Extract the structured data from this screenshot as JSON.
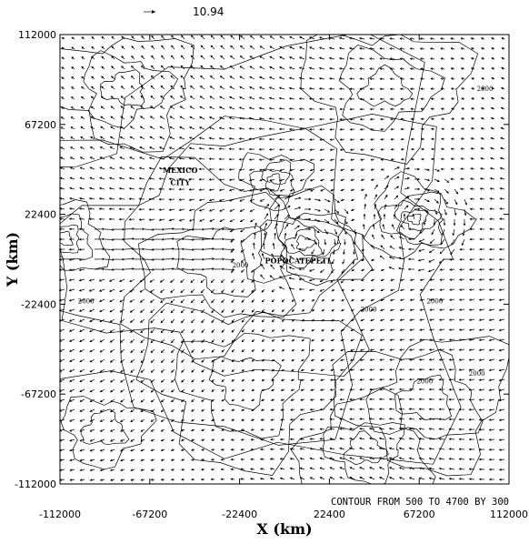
{
  "chart_data": {
    "type": "contour-vector",
    "reference_vector": {
      "label": "10.94"
    },
    "xlabel": "X  (km)",
    "ylabel": "Y  (km)",
    "xlim": [
      -112000,
      112000
    ],
    "ylim": [
      -112000,
      112000
    ],
    "x_ticks": [
      "-112000",
      "-67200",
      "-22400",
      "22400",
      "67200",
      "112000"
    ],
    "y_ticks": [
      "112000",
      "67200",
      "22400",
      "-22400",
      "-67200",
      "-112000"
    ],
    "x_tick_values": [
      -112000,
      -67200,
      -22400,
      22400,
      67200,
      112000
    ],
    "y_tick_values": [
      112000,
      67200,
      22400,
      -22400,
      -67200,
      -112000
    ],
    "contour_note": "CONTOUR FROM 500 TO 4700 BY 300",
    "contour_range": {
      "from": 500,
      "to": 4700,
      "by": 300
    },
    "place_labels": [
      {
        "text": "MEXICO",
        "x": -52000,
        "y": 43000
      },
      {
        "text": "CITY",
        "x": -52000,
        "y": 37000
      },
      {
        "text": "POPOCATEPETL",
        "x": 7000,
        "y": -2000
      }
    ],
    "contour_labels": [
      {
        "text": "2000",
        "x": 100000,
        "y": 84000
      },
      {
        "text": "2000",
        "x": -99000,
        "y": -22000
      },
      {
        "text": "2000",
        "x": 42000,
        "y": -26000
      },
      {
        "text": "2000",
        "x": 75000,
        "y": -22000
      },
      {
        "text": "2000",
        "x": 96000,
        "y": -58000
      },
      {
        "text": "2000",
        "x": 70000,
        "y": -62000
      },
      {
        "text": "2000",
        "x": -22000,
        "y": -4000
      }
    ],
    "grid": false
  }
}
